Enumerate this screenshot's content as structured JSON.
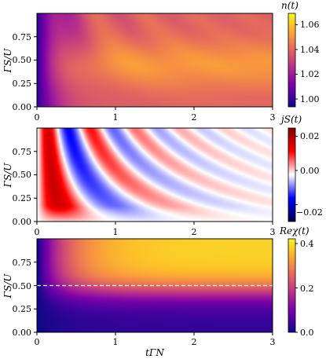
{
  "chart_data": [
    {
      "type": "heatmap",
      "colormap": "plasma",
      "xlim": [
        0,
        3
      ],
      "ylim": [
        0,
        1
      ],
      "xticks": [
        "0",
        "1",
        "2",
        "3"
      ],
      "yticks": [
        "0.00",
        "0.25",
        "0.50",
        "0.75"
      ],
      "ylabel": "ΓS/U",
      "xlabel": "",
      "colorbar": {
        "label": "n(t)",
        "range": [
          0.99,
          1.065
        ],
        "ticks": [
          "1.00",
          "1.02",
          "1.04",
          "1.06"
        ]
      }
    },
    {
      "type": "heatmap",
      "colormap": "seismic",
      "xlim": [
        0,
        3
      ],
      "ylim": [
        0,
        1
      ],
      "xticks": [
        "0",
        "1",
        "2",
        "3"
      ],
      "yticks": [
        "0.00",
        "0.25",
        "0.50",
        "0.75"
      ],
      "ylabel": "ΓS/U",
      "xlabel": "",
      "colorbar": {
        "label": "jS(t)",
        "range": [
          -0.03,
          0.025
        ],
        "ticks": [
          "0.02",
          "0.00",
          "−0.02"
        ]
      }
    },
    {
      "type": "heatmap",
      "colormap": "plasma",
      "xlim": [
        0,
        3
      ],
      "ylim": [
        0,
        1
      ],
      "xticks": [
        "0",
        "1",
        "2",
        "3"
      ],
      "yticks": [
        "0.00",
        "0.25",
        "0.50",
        "0.75"
      ],
      "ylabel": "ΓS/U",
      "xlabel": "tΓN",
      "dashed_line_y": 0.5,
      "colorbar": {
        "label": "Reχ(t)",
        "range": [
          0,
          0.42
        ],
        "ticks": [
          "0.4",
          "0.2",
          "0.0"
        ]
      }
    }
  ]
}
